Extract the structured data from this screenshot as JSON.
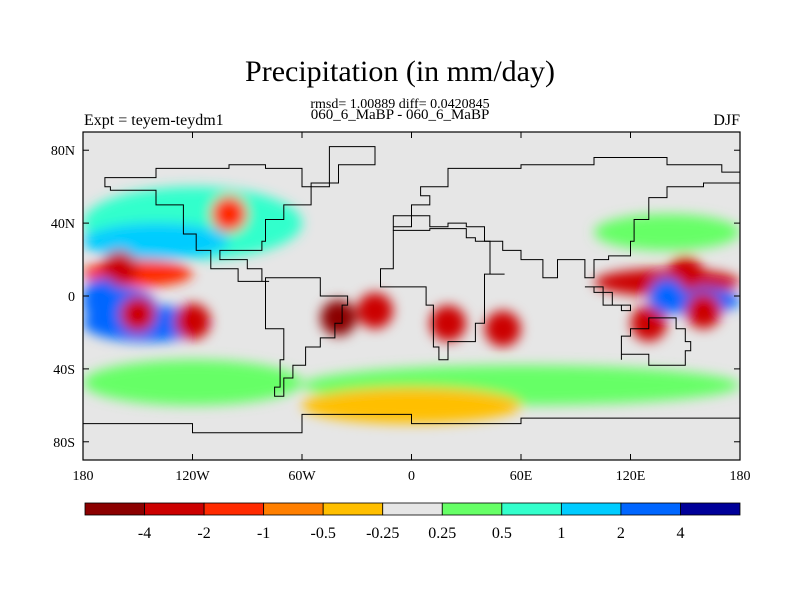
{
  "chart_data": {
    "type": "heatmap",
    "title": "Precipitation (in mm/day)",
    "stats_line": "rmsd= 1.00889 diff= 0.0420845",
    "subtitle": "060_6_MaBP - 060_6_MaBP",
    "left_label": "Expt = teyem-teydm1",
    "right_label": "DJF",
    "x_ticks": [
      "180",
      "120W",
      "60W",
      "0",
      "60E",
      "120E",
      "180"
    ],
    "y_ticks": [
      "80N",
      "40N",
      "0",
      "40S",
      "80S"
    ],
    "xlim": [
      -180,
      180
    ],
    "ylim": [
      -90,
      90
    ],
    "colorbar": {
      "colors": [
        "#8b0000",
        "#cc0000",
        "#ff2a00",
        "#ff7f00",
        "#ffbf00",
        "#e6e6e6",
        "#66ff66",
        "#33ffcc",
        "#00ccff",
        "#0066ff",
        "#000099"
      ],
      "labels": [
        "-4",
        "-2",
        "-1",
        "-0.5",
        "-0.25",
        "0.25",
        "0.5",
        "1",
        "2",
        "4"
      ]
    },
    "anomalies": [
      {
        "lon": -150,
        "lat": -10,
        "value": -3.0
      },
      {
        "lon": -120,
        "lat": -14,
        "value": -2.0
      },
      {
        "lon": -40,
        "lat": -12,
        "value": -4.0
      },
      {
        "lon": -20,
        "lat": -8,
        "value": -2.5
      },
      {
        "lon": 20,
        "lat": -15,
        "value": -3.0
      },
      {
        "lon": 50,
        "lat": -18,
        "value": -2.0
      },
      {
        "lon": 130,
        "lat": -15,
        "value": -2.0
      },
      {
        "lon": 160,
        "lat": -8,
        "value": -2.5
      },
      {
        "lon": -160,
        "lat": 15,
        "value": -2.0
      },
      {
        "lon": 150,
        "lat": 12,
        "value": -2.5
      },
      {
        "lon": -100,
        "lat": 45,
        "value": -1.5
      },
      {
        "lon": -170,
        "lat": 0,
        "value": 3.0
      },
      {
        "lon": 140,
        "lat": 0,
        "value": 4.0
      },
      {
        "lon": -130,
        "lat": 30,
        "value": 1.5
      }
    ]
  }
}
